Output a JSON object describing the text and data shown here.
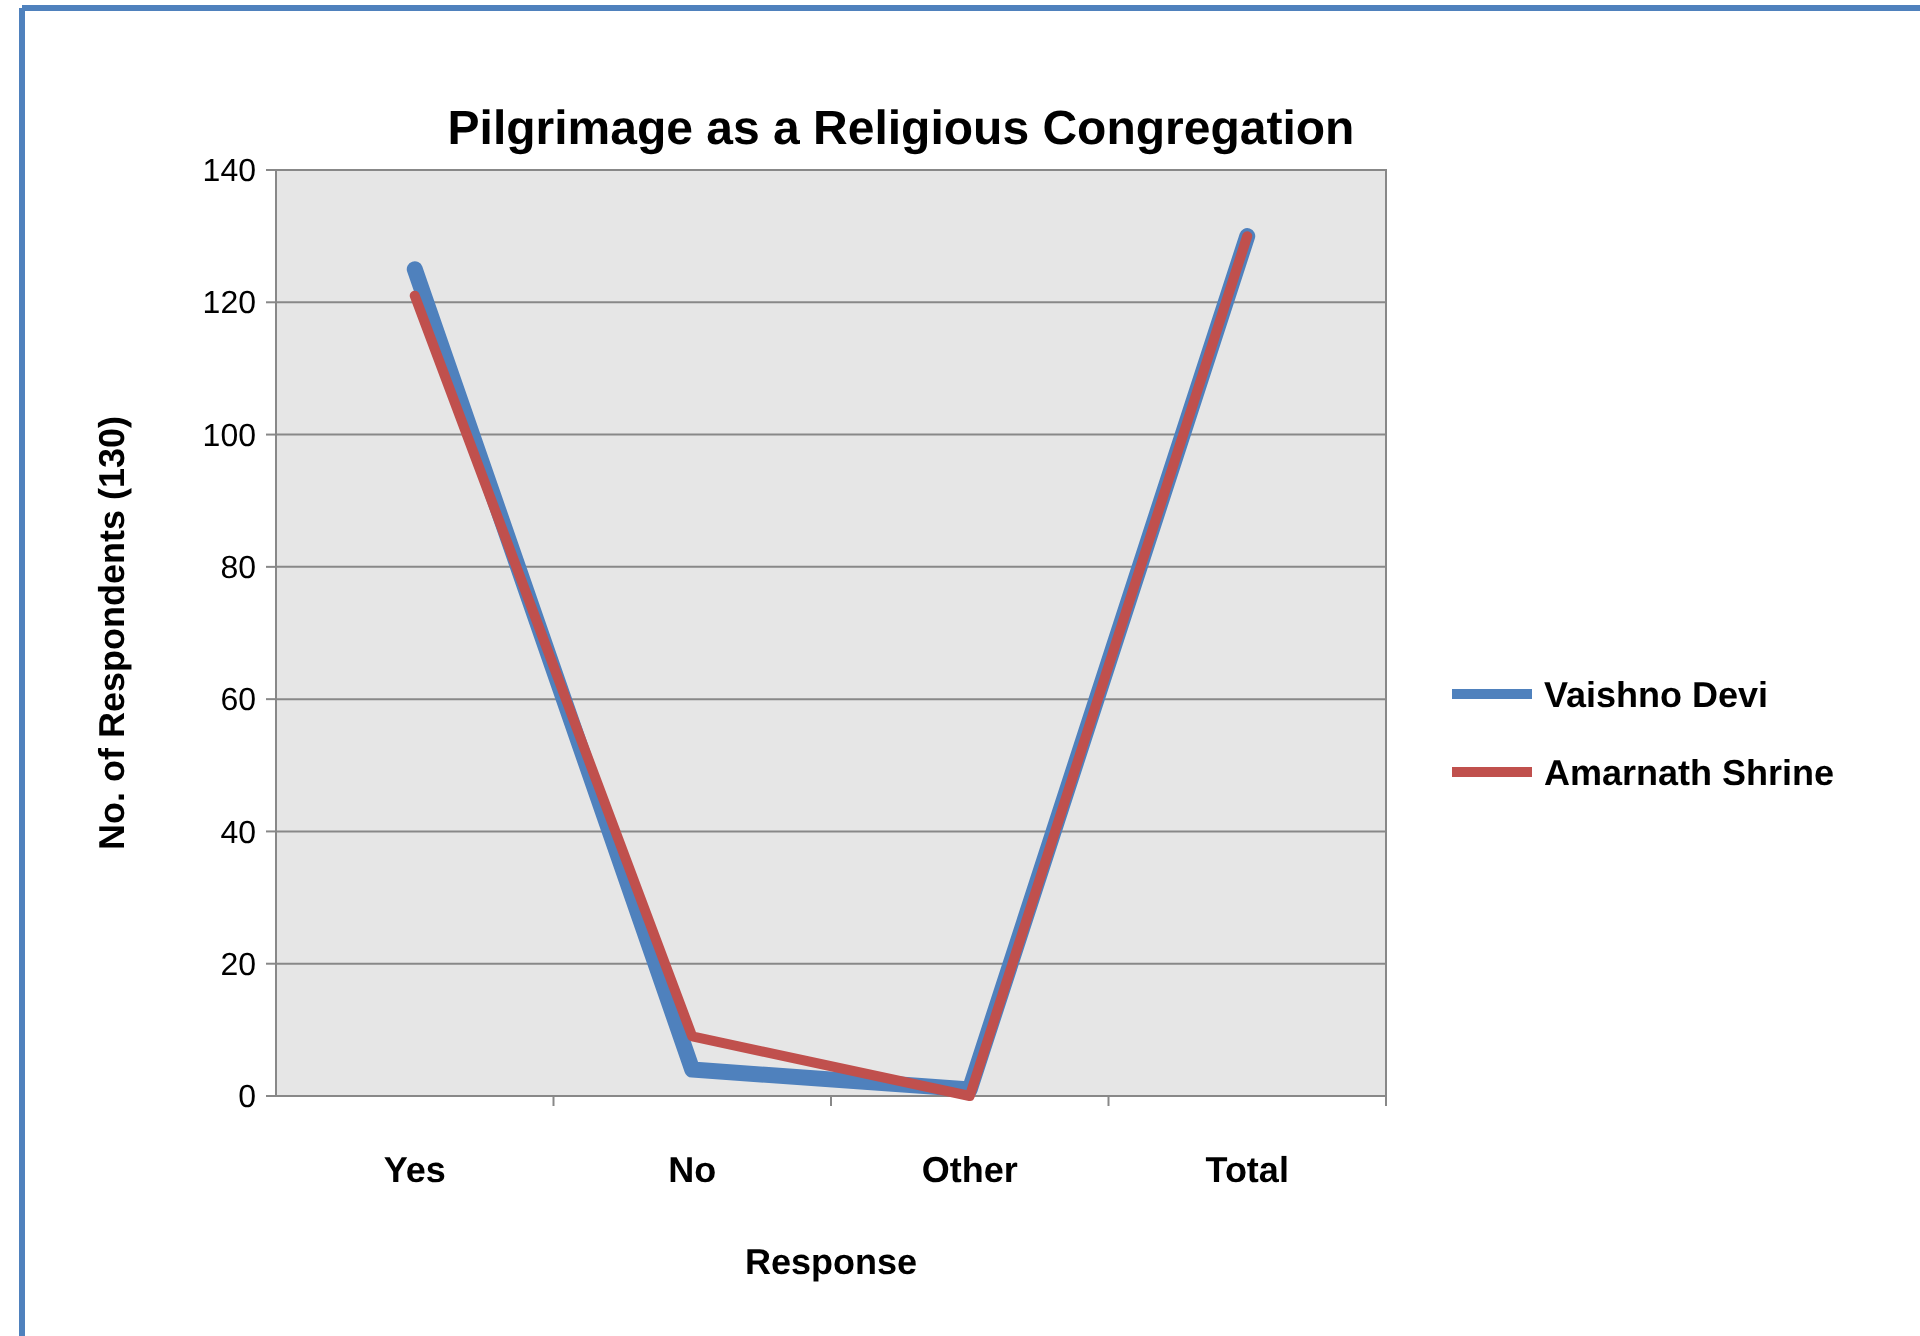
{
  "chart_data": {
    "type": "line",
    "title": "Pilgrimage as a Religious Congregation",
    "xlabel": "Response",
    "ylabel": "No. of Respondents (130)",
    "categories": [
      "Yes",
      "No",
      "Other",
      "Total"
    ],
    "series": [
      {
        "name": "Vaishno Devi",
        "color": "#4f81bd",
        "values": [
          125,
          4,
          1,
          130
        ]
      },
      {
        "name": "Amarnath Shrine",
        "color": "#c0504d",
        "values": [
          121,
          9,
          0,
          130
        ]
      }
    ],
    "ylim": [
      0,
      140
    ],
    "yticks": [
      0,
      20,
      40,
      60,
      80,
      100,
      120,
      140
    ],
    "grid": "y",
    "legend": "right",
    "marker": "none",
    "line_style": "solid"
  }
}
